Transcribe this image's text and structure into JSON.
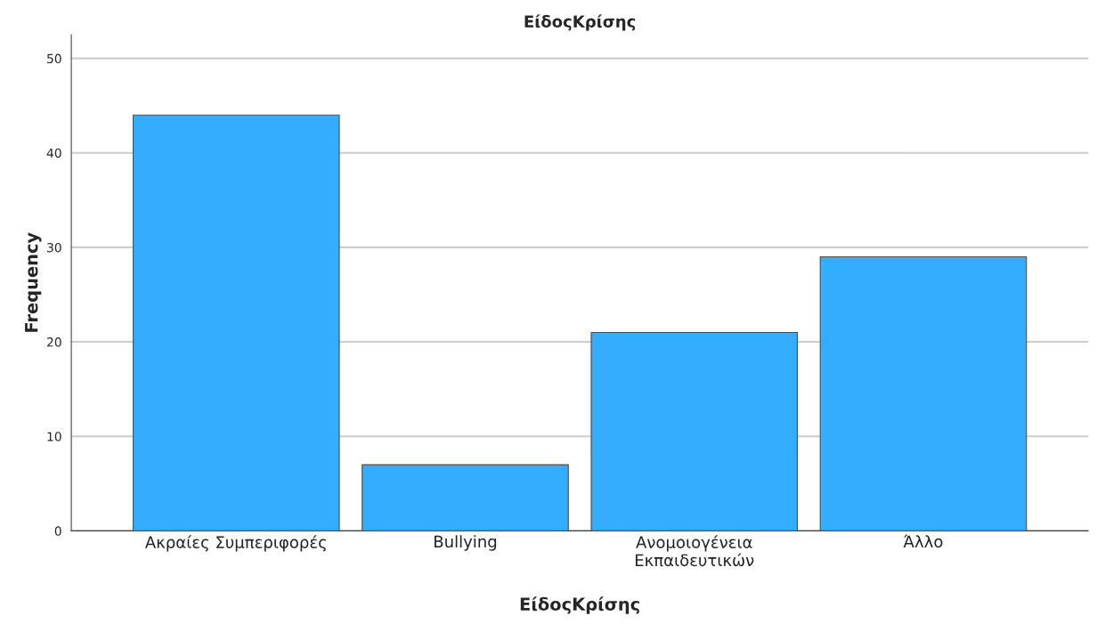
{
  "chart_data": {
    "type": "bar",
    "title": "ΕίδοςΚρίσης",
    "xlabel": "ΕίδοςΚρίσης",
    "ylabel": "Frequency",
    "categories": [
      "Ακραίες Συμπεριφορές",
      "Bullying",
      "Ανομοιογένεια\nΕκπαιδευτικών",
      "Άλλο"
    ],
    "values": [
      44,
      7,
      21,
      29
    ],
    "color": "#33adff",
    "ylim": [
      0,
      52.5
    ],
    "yticks": [
      0,
      10,
      20,
      30,
      40,
      50
    ],
    "grid": "y",
    "legend": false
  }
}
